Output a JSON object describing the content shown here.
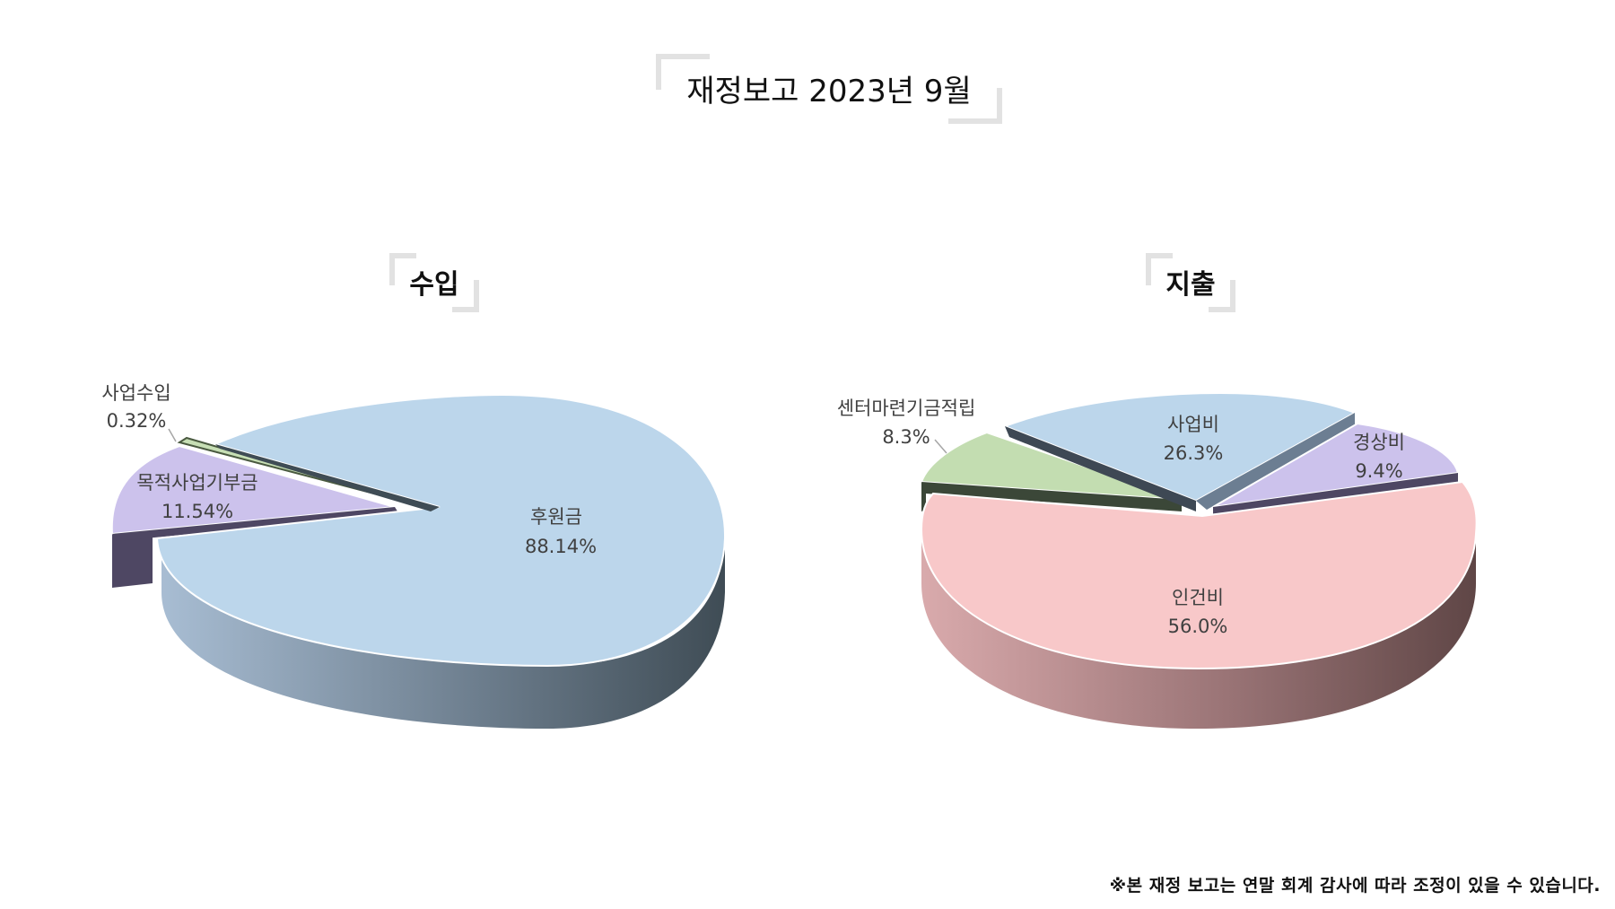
{
  "title": "재정보고 2023년 9월",
  "footnote": "※본 재정 보고는 연말 회계 감사에 따라 조정이 있을 수 있습니다.",
  "chart_data": [
    {
      "type": "pie",
      "title": "수입",
      "categories": [
        "후원금",
        "목적사업기부금",
        "사업수입"
      ],
      "labels": [
        "88.14%",
        "11.54%",
        "0.32%"
      ],
      "values": [
        88.14,
        11.54,
        0.32
      ],
      "colors": [
        "#BCD6EB",
        "#CCC2EC",
        "#C7DFB5"
      ]
    },
    {
      "type": "pie",
      "title": "지출",
      "categories": [
        "인건비",
        "센터마련기금적립",
        "사업비",
        "경상비"
      ],
      "labels": [
        "56.0%",
        "8.3%",
        "26.3%",
        "9.4%"
      ],
      "values": [
        56.0,
        8.3,
        26.3,
        9.4
      ],
      "colors": [
        "#F8C8C9",
        "#C3DDB1",
        "#BCD6EB",
        "#CCC2EC"
      ]
    }
  ]
}
